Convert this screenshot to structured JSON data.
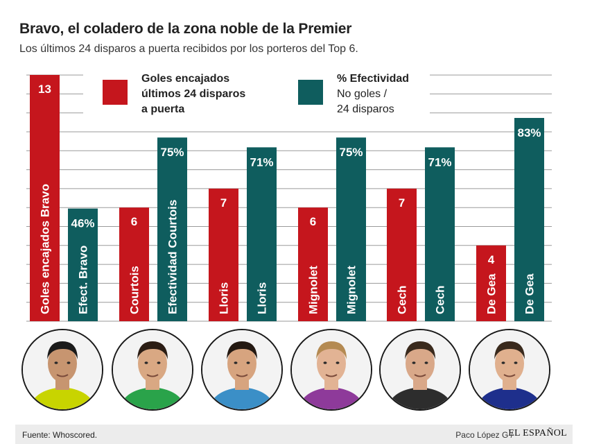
{
  "header": {
    "title": "Bravo, el coladero de la zona noble de la Premier",
    "subtitle": "Los últimos 24 disparos a puerta recibidos por los porteros del Top 6."
  },
  "legend": {
    "goals": {
      "label_line1": "Goles encajados",
      "label_line2": "últimos 24 disparos",
      "label_line3": "a puerta",
      "color": "#c5161d"
    },
    "effectiveness": {
      "label_line1": "%  Efectividad",
      "label_line2": "No goles /",
      "label_line3": "24 disparos",
      "color": "#0f5d5e"
    }
  },
  "colors": {
    "goals": "#c5161d",
    "effectiveness": "#0f5d5e",
    "gridline": "#9a9a9a"
  },
  "chart_data": {
    "type": "bar",
    "title": "Bravo, el coladero de la zona noble de la Premier",
    "subtitle": "Los últimos 24 disparos a puerta recibidos por los porteros del Top 6.",
    "ylim": [
      0,
      13
    ],
    "grid": true,
    "categories": [
      "Bravo",
      "Courtois",
      "Lloris",
      "Mignolet",
      "Cech",
      "De Gea"
    ],
    "series": [
      {
        "name": "Goles encajados últimos 24 disparos a puerta",
        "color": "#c5161d",
        "values": [
          13,
          6,
          7,
          6,
          7,
          4
        ],
        "value_labels": [
          "13",
          "6",
          "7",
          "6",
          "7",
          "4"
        ],
        "bar_labels": [
          "Goles encajados Bravo",
          "Courtois",
          "Lloris",
          "Mignolet",
          "Cech",
          "De Gea"
        ]
      },
      {
        "name": "% Efectividad No goles / 24 disparos",
        "color": "#0f5d5e",
        "values": [
          46,
          75,
          71,
          75,
          71,
          83
        ],
        "value_labels": [
          "46%",
          "75%",
          "71%",
          "75%",
          "71%",
          "83%"
        ],
        "bar_labels": [
          "Efect. Bravo",
          "Efectividad Courtois",
          "Lloris",
          "Mignolet",
          "Cech",
          "De Gea"
        ]
      }
    ]
  },
  "footer": {
    "source_label": "Fuente:",
    "source_value": "Whoscored.",
    "author": "Paco López G /",
    "brand": "EL ESPAÑOL"
  }
}
